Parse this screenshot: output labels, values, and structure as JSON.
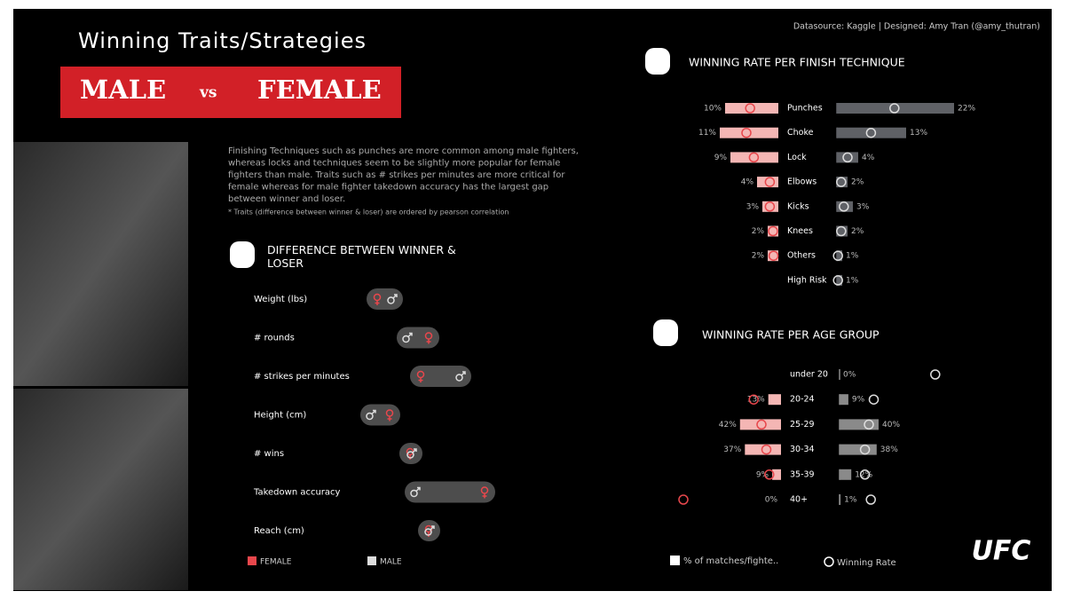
{
  "header": {
    "title": "Winning Traits/Strategies",
    "banner": {
      "left": "MALE",
      "middle": "vs",
      "right": "FEMALE"
    }
  },
  "credit": "Datasource: Kaggle | Designed: Amy Tran (@amy_thutran)",
  "description": {
    "lines": [
      "Finishing Techniques such as punches are more common among male fighters,",
      "whereas locks and techniques seem to be slightly more popular for female",
      "fighters than male. Traits such as # strikes per minutes are more critical for",
      "female whereas for male fighter takedown accuracy has the largest gap",
      "between winner and loser."
    ],
    "note": "* Traits (difference between winner & loser) are ordered by pearson correlation"
  },
  "chart_data": [
    {
      "type": "dumbbell",
      "title": "DIFFERENCE BETWEEN WINNER & LOSER",
      "categories": [
        "Weight (lbs)",
        "# rounds",
        "# strikes per minutes",
        "Height (cm)",
        "# wins",
        "Takedown accuracy",
        "Reach (cm)"
      ],
      "series": [
        {
          "name": "FEMALE",
          "color": "#e8474c",
          "values": [
            12.5,
            41.5,
            37,
            19.5,
            31,
            73,
            41.5
          ]
        },
        {
          "name": "MALE",
          "color": "#dddddd",
          "values": [
            21,
            29.5,
            59.5,
            9,
            32,
            34,
            42
          ]
        }
      ],
      "xlim": [
        0,
        100
      ]
    },
    {
      "type": "diverging-bar",
      "title": "WINNING RATE PER FINISH TECHNIQUE",
      "categories": [
        "Punches",
        "Choke",
        "Lock",
        "Elbows",
        "Kicks",
        "Knees",
        "Others",
        "High Risk"
      ],
      "series": [
        {
          "color": "#f4b6b4",
          "values": [
            10,
            11,
            9,
            4,
            3,
            2,
            2,
            null
          ],
          "value_labels": [
            "10%",
            "11%",
            "9%",
            "4%",
            "3%",
            "2%",
            "2%",
            null
          ]
        },
        {
          "color": "#5f6166",
          "values": [
            22,
            13,
            4,
            2,
            3,
            2,
            1,
            1
          ],
          "value_labels": [
            "22%",
            "13%",
            "4%",
            "2%",
            "3%",
            "2%",
            "1%",
            "1%"
          ]
        },
        {
          "color": "#e8474c",
          "values": [
            5.3,
            6,
            4.6,
            1.6,
            1.6,
            1,
            0.9,
            null
          ]
        },
        {
          "color": "#dddddd",
          "values": [
            10.8,
            6.4,
            2,
            0.8,
            1.3,
            0.8,
            0.2,
            0.2
          ]
        }
      ],
      "xlim": [
        0,
        25
      ]
    },
    {
      "type": "diverging-bar",
      "title": "WINNING RATE PER AGE GROUP",
      "categories": [
        "under 20",
        "20-24",
        "25-29",
        "30-34",
        "35-39",
        "40+"
      ],
      "series": [
        {
          "color": "#f4b6b4",
          "values": [
            null,
            13,
            42,
            37,
            9,
            0
          ],
          "value_labels": [
            null,
            "13%",
            "42%",
            "37%",
            "9%",
            "0%"
          ]
        },
        {
          "color": "#8a8a8a",
          "values": [
            0,
            9,
            40,
            38,
            12,
            1
          ],
          "value_labels": [
            "0%",
            "9%",
            "40%",
            "38%",
            "12%",
            "1%"
          ]
        },
        {
          "color": "#e8474c",
          "values": [
            null,
            28,
            20,
            15,
            12,
            100
          ]
        },
        {
          "color": "#dddddd",
          "values": [
            98,
            35,
            30,
            26,
            26,
            32
          ]
        }
      ],
      "xlim": [
        0,
        100
      ]
    }
  ],
  "legend": {
    "share": "% of matches/fighte..",
    "rate": "Winning Rate"
  },
  "logo": "UFC"
}
